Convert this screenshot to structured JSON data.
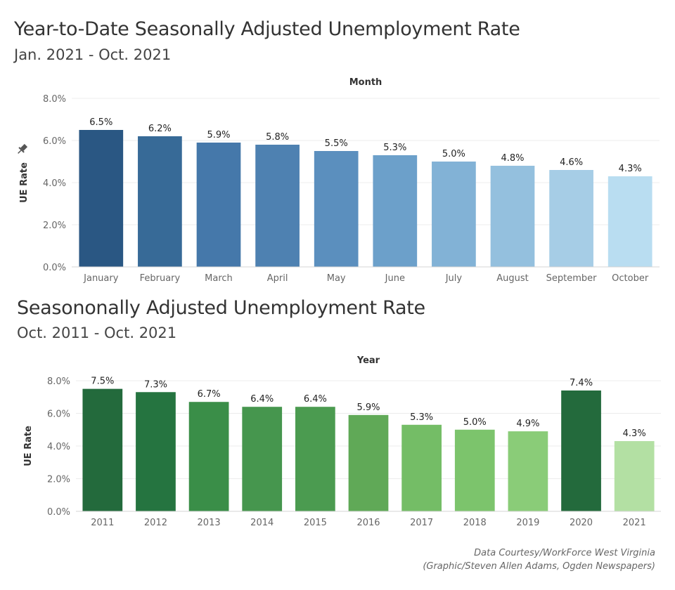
{
  "charts": [
    {
      "title": "Year-to-Date Seasonally Adjusted Unemployment Rate",
      "subtitle": "Jan. 2021 - Oct. 2021"
    },
    {
      "title": "Seasononally Adjusted Unemployment Rate",
      "subtitle": "Oct. 2011 - Oct. 2021"
    }
  ],
  "credits": {
    "line1": "Data Courtesy/WorkForce West Virginia",
    "line2": "(Graphic/Steven Allen Adams, Ogden Newspapers)"
  },
  "chart_data": [
    {
      "type": "bar",
      "title": "Year-to-Date Seasonally Adjusted Unemployment Rate",
      "subtitle": "Jan. 2021 - Oct. 2021",
      "xlabel": "Month",
      "ylabel": "UE Rate",
      "ylim": [
        0,
        8
      ],
      "yticks": [
        "0.0%",
        "2.0%",
        "4.0%",
        "6.0%",
        "8.0%"
      ],
      "ytick_values": [
        0,
        2,
        4,
        6,
        8
      ],
      "categories": [
        "January",
        "February",
        "March",
        "April",
        "May",
        "June",
        "July",
        "August",
        "September",
        "October"
      ],
      "values": [
        6.5,
        6.2,
        5.9,
        5.8,
        5.5,
        5.3,
        5.0,
        4.8,
        4.6,
        4.3
      ],
      "data_labels": [
        "6.5%",
        "6.2%",
        "5.9%",
        "5.8%",
        "5.5%",
        "5.3%",
        "5.0%",
        "4.8%",
        "4.6%",
        "4.3%"
      ],
      "colors": [
        "#2a5783",
        "#376a97",
        "#4578aa",
        "#4e81b1",
        "#5b8fbe",
        "#6ca0ca",
        "#82b2d6",
        "#94c0de",
        "#a6cde6",
        "#b9ddf1"
      ],
      "grid": true
    },
    {
      "type": "bar",
      "title": "Seasononally Adjusted Unemployment Rate",
      "subtitle": "Oct. 2011 - Oct. 2021",
      "xlabel": "Year",
      "ylabel": "UE Rate",
      "ylim": [
        0,
        8
      ],
      "yticks": [
        "0.0%",
        "2.0%",
        "4.0%",
        "6.0%",
        "8.0%"
      ],
      "ytick_values": [
        0,
        2,
        4,
        6,
        8
      ],
      "categories": [
        "2011",
        "2012",
        "2013",
        "2014",
        "2015",
        "2016",
        "2017",
        "2018",
        "2019",
        "2020",
        "2021"
      ],
      "values": [
        7.5,
        7.3,
        6.7,
        6.4,
        6.4,
        5.9,
        5.3,
        5.0,
        4.9,
        7.4,
        4.3
      ],
      "data_labels": [
        "7.5%",
        "7.3%",
        "6.7%",
        "6.4%",
        "6.4%",
        "5.9%",
        "5.3%",
        "5.0%",
        "4.9%",
        "7.4%",
        "4.3%"
      ],
      "colors": [
        "#236a3c",
        "#257440",
        "#3a8e48",
        "#46964e",
        "#4b9b50",
        "#60a957",
        "#74bd66",
        "#7cc46c",
        "#8acc78",
        "#236a3c",
        "#b3e0a3"
      ],
      "grid": true
    }
  ]
}
